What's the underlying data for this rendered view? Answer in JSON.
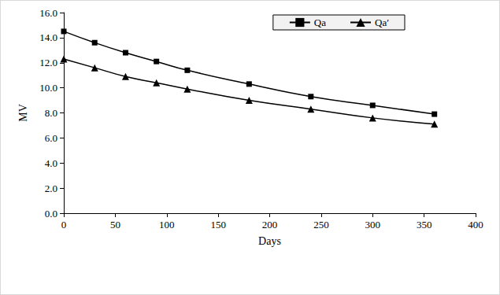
{
  "chart_data": {
    "type": "line",
    "x_label": "Days",
    "y_label": "MV",
    "x": [
      0,
      30,
      60,
      90,
      120,
      180,
      240,
      300,
      360
    ],
    "series": [
      {
        "name": "Qa",
        "color": "#000000",
        "marker": "square",
        "line_style": "solid",
        "values": [
          14.5,
          13.6,
          12.8,
          12.1,
          11.4,
          10.3,
          9.3,
          8.6,
          7.9
        ]
      },
      {
        "name": "Qa′",
        "color": "#000000",
        "marker": "triangle",
        "line_style": "solid",
        "values": [
          12.3,
          11.6,
          10.9,
          10.4,
          9.9,
          9.0,
          8.3,
          7.6,
          7.1
        ]
      }
    ],
    "xlim": [
      0,
      400
    ],
    "xticks": [
      0,
      50,
      100,
      150,
      200,
      250,
      300,
      350,
      400
    ],
    "ylim": [
      0,
      16
    ],
    "yticks": [
      {
        "value": 0,
        "label": "0.0"
      },
      {
        "value": 2,
        "label": "2.0"
      },
      {
        "value": 4,
        "label": "4.0"
      },
      {
        "value": 6,
        "label": "6.0"
      },
      {
        "value": 8,
        "label": "8.0"
      },
      {
        "value": 10,
        "label": "10.0"
      },
      {
        "value": 12,
        "label": "12.0"
      },
      {
        "value": 14,
        "label": "14.0"
      },
      {
        "value": 16,
        "label": "16.0"
      }
    ],
    "grid": false,
    "legend": "top-right"
  }
}
